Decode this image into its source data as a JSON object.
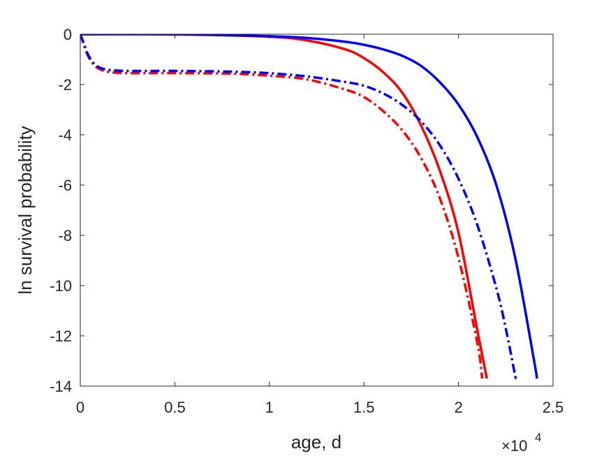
{
  "chart_data": {
    "type": "line",
    "xlabel": "age, d",
    "ylabel": "ln survival probability",
    "x_exponent_label": "×10",
    "x_exponent_power": "4",
    "xlim": [
      0,
      25000
    ],
    "ylim": [
      -14,
      0
    ],
    "xticks": [
      0,
      5000,
      10000,
      15000,
      20000,
      25000
    ],
    "xtick_labels": [
      "0",
      "0.5",
      "1",
      "1.5",
      "2",
      "2.5"
    ],
    "yticks": [
      0,
      -2,
      -4,
      -6,
      -8,
      -10,
      -12,
      -14
    ],
    "ytick_labels": [
      "0",
      "-2",
      "-4",
      "-6",
      "-8",
      "-10",
      "-12",
      "-14"
    ],
    "grid": false,
    "series": [
      {
        "color": "#ff0000",
        "style": "solid",
        "points": [
          [
            0,
            0
          ],
          [
            5000,
            -0.01
          ],
          [
            10000,
            -0.1
          ],
          [
            12000,
            -0.25
          ],
          [
            14000,
            -0.6
          ],
          [
            15000,
            -0.95
          ],
          [
            16000,
            -1.5
          ],
          [
            17000,
            -2.3
          ],
          [
            18000,
            -3.6
          ],
          [
            19000,
            -5.4
          ],
          [
            20000,
            -7.9
          ],
          [
            21000,
            -11.8
          ],
          [
            21500,
            -13.7
          ]
        ]
      },
      {
        "color": "#0000ff",
        "style": "solid",
        "points": [
          [
            0,
            0
          ],
          [
            5000,
            0
          ],
          [
            10000,
            -0.08
          ],
          [
            12000,
            -0.15
          ],
          [
            14000,
            -0.3
          ],
          [
            15000,
            -0.42
          ],
          [
            16000,
            -0.6
          ],
          [
            17000,
            -0.85
          ],
          [
            18000,
            -1.25
          ],
          [
            19000,
            -1.9
          ],
          [
            20000,
            -2.8
          ],
          [
            21000,
            -4.1
          ],
          [
            22000,
            -6.0
          ],
          [
            23000,
            -8.9
          ],
          [
            24000,
            -13.0
          ],
          [
            24150,
            -13.7
          ]
        ]
      },
      {
        "color": "#ff0000",
        "style": "dash-dot",
        "points": [
          [
            0,
            0
          ],
          [
            200,
            -0.45
          ],
          [
            400,
            -0.85
          ],
          [
            700,
            -1.2
          ],
          [
            1000,
            -1.38
          ],
          [
            1500,
            -1.5
          ],
          [
            2500,
            -1.55
          ],
          [
            5000,
            -1.55
          ],
          [
            8000,
            -1.57
          ],
          [
            10000,
            -1.65
          ],
          [
            12000,
            -1.8
          ],
          [
            14000,
            -2.2
          ],
          [
            15000,
            -2.5
          ],
          [
            16000,
            -3.05
          ],
          [
            17000,
            -3.8
          ],
          [
            18000,
            -4.9
          ],
          [
            19000,
            -6.5
          ],
          [
            20000,
            -8.9
          ],
          [
            21000,
            -12.3
          ],
          [
            21250,
            -13.7
          ]
        ]
      },
      {
        "color": "#0000ff",
        "style": "dash-dot",
        "points": [
          [
            0,
            0
          ],
          [
            200,
            -0.4
          ],
          [
            400,
            -0.8
          ],
          [
            700,
            -1.15
          ],
          [
            1000,
            -1.32
          ],
          [
            1500,
            -1.42
          ],
          [
            2500,
            -1.46
          ],
          [
            5000,
            -1.46
          ],
          [
            8000,
            -1.49
          ],
          [
            10000,
            -1.55
          ],
          [
            12000,
            -1.68
          ],
          [
            14000,
            -1.9
          ],
          [
            15000,
            -2.05
          ],
          [
            16000,
            -2.35
          ],
          [
            17000,
            -2.8
          ],
          [
            18000,
            -3.45
          ],
          [
            19000,
            -4.4
          ],
          [
            20000,
            -5.75
          ],
          [
            21000,
            -7.6
          ],
          [
            22000,
            -10.1
          ],
          [
            22500,
            -11.7
          ],
          [
            23000,
            -13.6
          ],
          [
            23030,
            -13.7
          ]
        ]
      }
    ]
  }
}
